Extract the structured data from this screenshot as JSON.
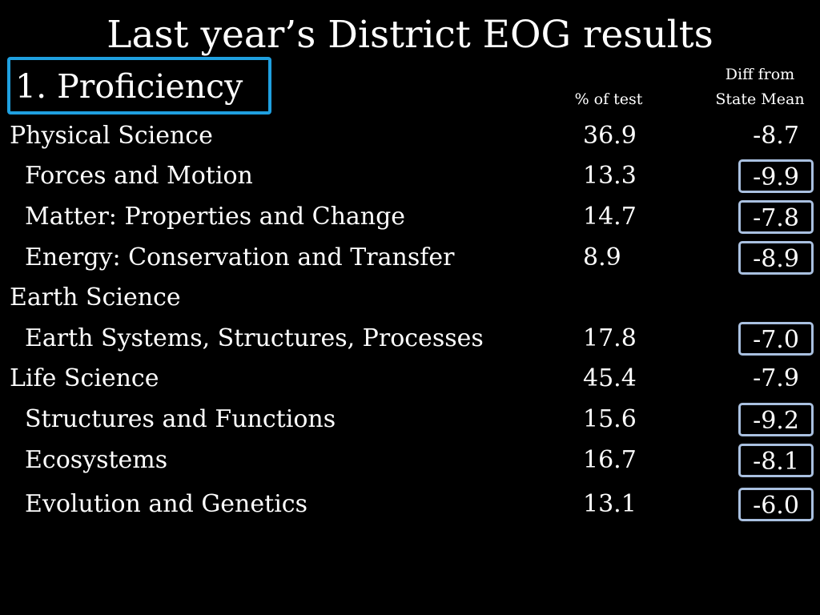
{
  "title": "Last year’s District EOG results",
  "section_label": "1. Proficiency",
  "columns": {
    "pct_header": "% of test",
    "diff_header_line1": "Diff from",
    "diff_header_line2": "State Mean"
  },
  "colors": {
    "background": "#000000",
    "text": "#ffffff",
    "section_box_border": "#1fa0e0",
    "diff_box_border": "#a9c0e0"
  },
  "rows": [
    {
      "name": "Physical Science",
      "pct": "36.9",
      "diff": "-8.7"
    },
    {
      "name": "Forces and Motion",
      "pct": "13.3",
      "diff": "-9.9"
    },
    {
      "name": "Matter: Properties and Change",
      "pct": "14.7",
      "diff": "-7.8"
    },
    {
      "name": "Energy: Conservation and Transfer",
      "pct": "8.9",
      "diff": "-8.9"
    },
    {
      "name": "Earth Science",
      "pct": "",
      "diff": ""
    },
    {
      "name": "Earth Systems, Structures, Processes",
      "pct": "17.8",
      "diff": "-7.0"
    },
    {
      "name": "Life Science",
      "pct": "45.4",
      "diff": "-7.9"
    },
    {
      "name": "Structures and Functions",
      "pct": "15.6",
      "diff": "-9.2"
    },
    {
      "name": "Ecosystems",
      "pct": "16.7",
      "diff": "-8.1"
    },
    {
      "name": "Evolution and Genetics",
      "pct": "13.1",
      "diff": "-6.0"
    }
  ]
}
